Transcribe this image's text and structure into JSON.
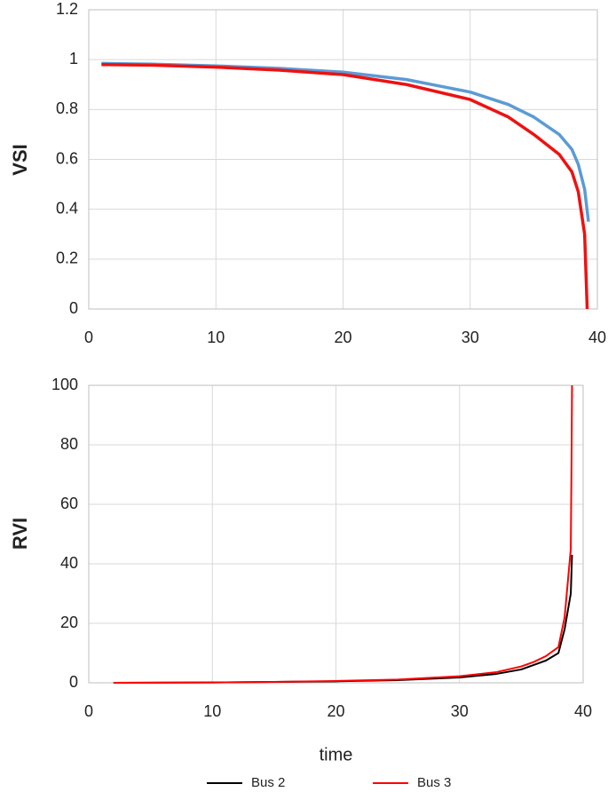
{
  "chart_data": [
    {
      "type": "line",
      "y_label": "VSI",
      "xlim": [
        0,
        40
      ],
      "xticks": [
        0,
        10,
        20,
        30,
        40
      ],
      "ylim": [
        0,
        1.2
      ],
      "yticks": [
        0,
        0.2,
        0.4,
        0.6,
        0.8,
        1,
        1.2
      ],
      "grid": true,
      "series": [
        {
          "color": "#5b9bd5",
          "x": [
            1,
            5,
            10,
            15,
            20,
            25,
            30,
            33,
            35,
            37,
            38,
            38.5,
            39,
            39.3
          ],
          "values": [
            0.985,
            0.982,
            0.975,
            0.965,
            0.95,
            0.92,
            0.87,
            0.82,
            0.77,
            0.7,
            0.64,
            0.58,
            0.48,
            0.35
          ]
        },
        {
          "color": "#ee1111",
          "x": [
            1,
            5,
            10,
            15,
            20,
            25,
            30,
            33,
            35,
            37,
            38,
            38.5,
            39,
            39.1,
            39.2
          ],
          "values": [
            0.98,
            0.978,
            0.97,
            0.958,
            0.94,
            0.9,
            0.84,
            0.77,
            0.7,
            0.62,
            0.55,
            0.47,
            0.3,
            0.15,
            0
          ]
        }
      ]
    },
    {
      "type": "line",
      "x_label": "time",
      "y_label": "RVI",
      "xlim": [
        0,
        40
      ],
      "xticks": [
        0,
        10,
        20,
        30,
        40
      ],
      "ylim": [
        0,
        100
      ],
      "yticks": [
        0,
        20,
        40,
        60,
        80,
        100
      ],
      "grid": true,
      "legend": "bottom",
      "series": [
        {
          "name": "Bus 2",
          "color": "#000000",
          "x": [
            2,
            10,
            15,
            20,
            25,
            30,
            33,
            35,
            36,
            37,
            38,
            38.5,
            39,
            39.1
          ],
          "values": [
            0,
            0.1,
            0.3,
            0.5,
            0.9,
            1.8,
            3,
            4.5,
            6,
            7.5,
            10,
            18,
            30,
            43
          ]
        },
        {
          "name": "Bus 3",
          "color": "#ff0000",
          "x": [
            2,
            10,
            15,
            20,
            25,
            30,
            33,
            35,
            36,
            37,
            38,
            38.5,
            39,
            39.05,
            39.1
          ],
          "values": [
            0,
            0.1,
            0.3,
            0.6,
            1.1,
            2.2,
            3.6,
            5.5,
            7,
            9,
            12,
            22,
            45,
            70,
            100
          ]
        }
      ]
    }
  ]
}
